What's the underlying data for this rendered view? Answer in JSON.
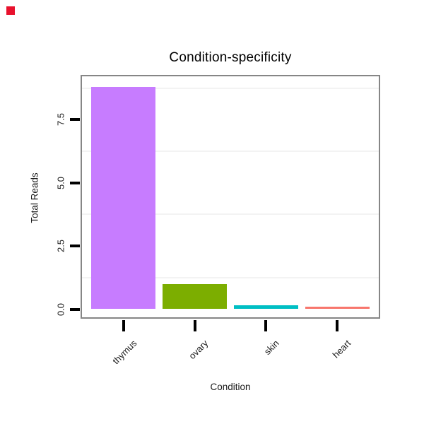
{
  "indicator": {
    "color": "#e8112d"
  },
  "chart_data": {
    "type": "bar",
    "title": "Condition-specificity",
    "xlabel": "Condition",
    "ylabel": "Total Reads",
    "categories": [
      "thymus",
      "ovary",
      "skin",
      "heart"
    ],
    "values": [
      8.8,
      1.0,
      0.15,
      0.1
    ],
    "bar_colors": [
      "#C77CFF",
      "#7CAE00",
      "#00BFC4",
      "#F8766D"
    ],
    "yticks": [
      0,
      2.5,
      5,
      7.5
    ],
    "ytick_labels": [
      "0.0",
      "2.5",
      "5.0",
      "7.5"
    ],
    "minor_gridlines": [
      1.25,
      3.75,
      6.25,
      8.75
    ],
    "ylim": [
      -0.44,
      9.24
    ],
    "grid": "minor-only",
    "legend": "none"
  },
  "colors": {
    "panel_border": "#868686",
    "gridline": "#f3f3f3",
    "tick": "#000000",
    "axis_text": "#1a1a1a"
  }
}
